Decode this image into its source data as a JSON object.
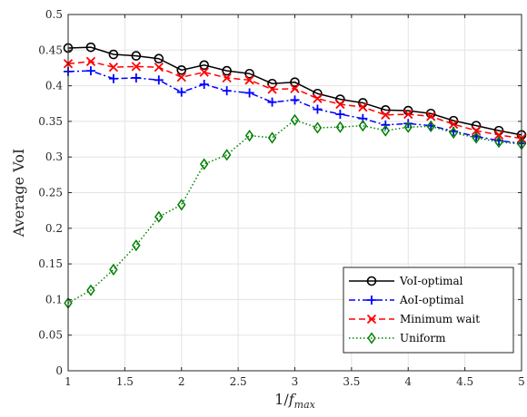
{
  "chart_data": {
    "type": "line",
    "xlabel": "1/f_max",
    "ylabel": "Average VoI",
    "xlim": [
      1,
      5
    ],
    "ylim": [
      0,
      0.5
    ],
    "grid": true,
    "legend_position": "bottom-right",
    "x_ticks": [
      "1",
      "1.5",
      "2",
      "2.5",
      "3",
      "3.5",
      "4",
      "4.5",
      "5"
    ],
    "y_ticks": [
      "0",
      "0.05",
      "0.1",
      "0.15",
      "0.2",
      "0.25",
      "0.3",
      "0.35",
      "0.4",
      "0.45",
      "0.5"
    ],
    "x": [
      1,
      1.2,
      1.4,
      1.6,
      1.8,
      2,
      2.2,
      2.4,
      2.6,
      2.8,
      3,
      3.2,
      3.4,
      3.6,
      3.8,
      4,
      4.2,
      4.4,
      4.6,
      4.8,
      5
    ],
    "series": [
      {
        "name": "VoI-optimal",
        "color": "#000000",
        "marker": "circle",
        "dash": "solid",
        "values": [
          0.453,
          0.454,
          0.444,
          0.442,
          0.438,
          0.422,
          0.429,
          0.421,
          0.417,
          0.403,
          0.405,
          0.389,
          0.381,
          0.376,
          0.366,
          0.365,
          0.361,
          0.351,
          0.344,
          0.337,
          0.331
        ]
      },
      {
        "name": "AoI-optimal",
        "color": "#0000ff",
        "marker": "plus",
        "dash": "dashdot",
        "values": [
          0.42,
          0.421,
          0.41,
          0.411,
          0.408,
          0.391,
          0.402,
          0.393,
          0.39,
          0.377,
          0.38,
          0.367,
          0.36,
          0.354,
          0.345,
          0.347,
          0.344,
          0.336,
          0.329,
          0.323,
          0.319
        ]
      },
      {
        "name": "Minimum wait",
        "color": "#ff0000",
        "marker": "x",
        "dash": "dashed",
        "values": [
          0.431,
          0.434,
          0.426,
          0.427,
          0.426,
          0.412,
          0.419,
          0.411,
          0.408,
          0.395,
          0.396,
          0.382,
          0.374,
          0.37,
          0.359,
          0.36,
          0.357,
          0.346,
          0.337,
          0.331,
          0.326
        ]
      },
      {
        "name": "Uniform",
        "color": "#008000",
        "marker": "diamond",
        "dash": "dotted",
        "values": [
          0.095,
          0.113,
          0.142,
          0.176,
          0.216,
          0.233,
          0.29,
          0.303,
          0.33,
          0.327,
          0.352,
          0.341,
          0.342,
          0.344,
          0.337,
          0.342,
          0.343,
          0.334,
          0.327,
          0.321,
          0.318
        ]
      }
    ]
  }
}
